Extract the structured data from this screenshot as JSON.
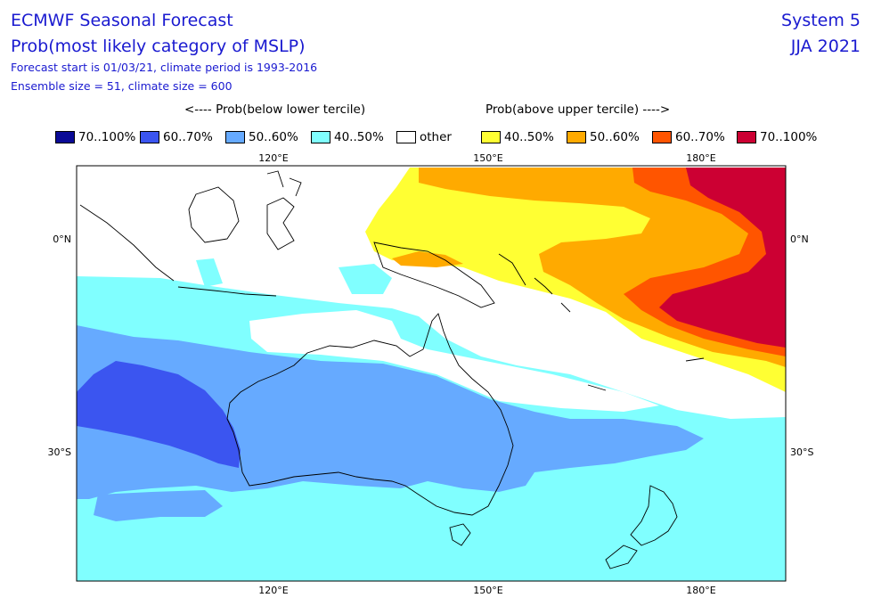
{
  "header": {
    "title": "ECMWF Seasonal Forecast",
    "subtitle": "Prob(most likely category of MSLP)",
    "forecast_start": "Forecast start is 01/03/21, climate period is 1993-2016",
    "ensemble": "Ensemble size = 51, climate size = 600",
    "system": "System 5",
    "season": "JJA 2021"
  },
  "legend": {
    "below_heading": "<---- Prob(below lower tercile)",
    "above_heading": "Prob(above upper tercile) ---->",
    "items": [
      {
        "label": "70..100%",
        "color": "#0a0a96"
      },
      {
        "label": "60..70%",
        "color": "#3b55f0"
      },
      {
        "label": "50..60%",
        "color": "#66aaff"
      },
      {
        "label": "40..50%",
        "color": "#80ffff"
      },
      {
        "label": "other",
        "color": "#ffffff"
      },
      {
        "label": "40..50%",
        "color": "#ffff33"
      },
      {
        "label": "50..60%",
        "color": "#ffaa00"
      },
      {
        "label": "60..70%",
        "color": "#ff5500"
      },
      {
        "label": "70..100%",
        "color": "#cc0033"
      }
    ]
  },
  "map": {
    "lon_ticks": [
      "120°E",
      "150°E",
      "180°E"
    ],
    "lat_ticks": [
      "0°N",
      "30°S"
    ]
  }
}
